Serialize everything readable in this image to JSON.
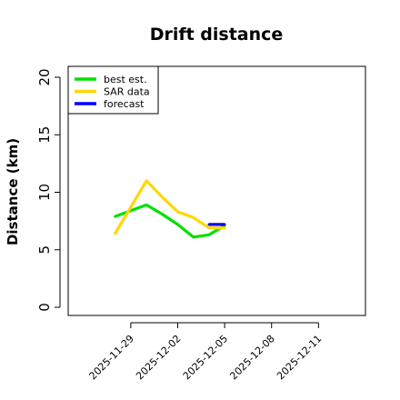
{
  "chart_data": {
    "type": "line",
    "title": "Drift distance",
    "ylabel": "Distance (km)",
    "xlabel": "",
    "ylim": [
      0,
      20
    ],
    "yticks": [
      0,
      5,
      10,
      15,
      20
    ],
    "xlim": [
      "2025-11-25",
      "2025-12-14"
    ],
    "xticks": [
      "2025-11-29",
      "2025-12-02",
      "2025-12-05",
      "2025-12-08",
      "2025-12-11"
    ],
    "grid": false,
    "legend_position": "top-left",
    "series": [
      {
        "name": "best est.",
        "color": "#00e000",
        "x": [
          "2025-11-28",
          "2025-11-30",
          "2025-12-01",
          "2025-12-02",
          "2025-12-03",
          "2025-12-04",
          "2025-12-05"
        ],
        "y": [
          7.9,
          8.9,
          8.1,
          7.2,
          6.1,
          6.3,
          7.1
        ]
      },
      {
        "name": "SAR data",
        "color": "#ffd700",
        "x": [
          "2025-11-28",
          "2025-11-30",
          "2025-12-01",
          "2025-12-02",
          "2025-12-03",
          "2025-12-04",
          "2025-12-05"
        ],
        "y": [
          6.4,
          11.0,
          9.6,
          8.3,
          7.8,
          6.9,
          6.9
        ]
      },
      {
        "name": "forecast",
        "color": "#0000ff",
        "x": [
          "2025-12-04",
          "2025-12-05"
        ],
        "y": [
          7.2,
          7.2
        ]
      }
    ]
  }
}
